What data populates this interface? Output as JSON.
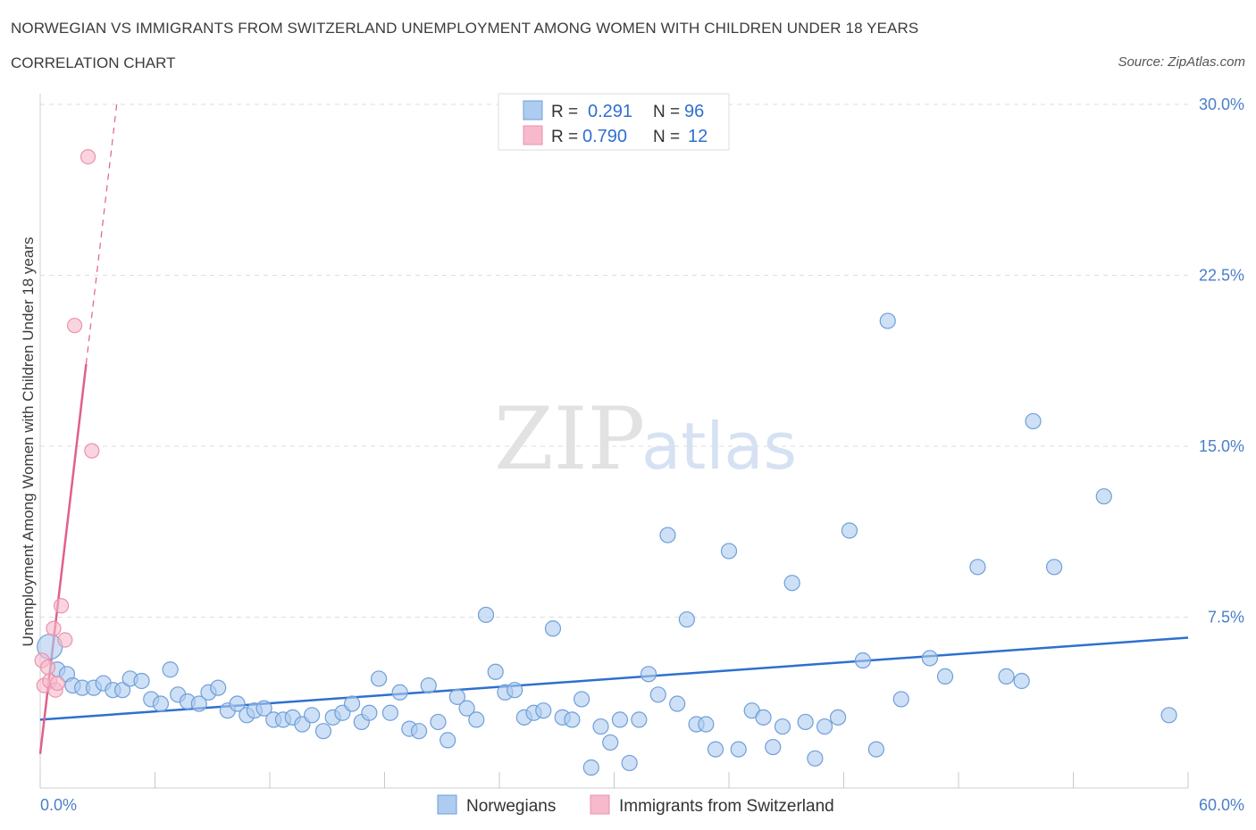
{
  "header": {
    "title": "NORWEGIAN VS IMMIGRANTS FROM SWITZERLAND UNEMPLOYMENT AMONG WOMEN WITH CHILDREN UNDER 18 YEARS",
    "subtitle": "CORRELATION CHART",
    "source": "Source: ZipAtlas.com"
  },
  "watermark": {
    "zip": "ZIP",
    "atlas": "atlas"
  },
  "legend_box": {
    "rows": [
      {
        "r_label": "R = ",
        "r_value": "0.291",
        "n_label": "N = ",
        "n_value": "96",
        "color": "#aecbf0"
      },
      {
        "r_label": "R = ",
        "r_value": "0.790",
        "n_label": "N = ",
        "n_value": "12",
        "color": "#f7b9cc"
      }
    ]
  },
  "chart_data": {
    "type": "scatter",
    "title": "NORWEGIAN VS IMMIGRANTS FROM SWITZERLAND UNEMPLOYMENT AMONG WOMEN WITH CHILDREN UNDER 18 YEARS",
    "subtitle": "CORRELATION CHART",
    "xlabel": "",
    "ylabel": "Unemployment Among Women with Children Under 18 years",
    "xlim": [
      0,
      60
    ],
    "ylim": [
      0,
      30
    ],
    "x_tick_labels": [
      "0.0%",
      "60.0%"
    ],
    "y_ticks": [
      7.5,
      15.0,
      22.5,
      30.0
    ],
    "y_tick_labels": [
      "7.5%",
      "15.0%",
      "22.5%",
      "30.0%"
    ],
    "grid": "horizontal dashed",
    "legend_placement": "bottom-center",
    "colors": {
      "norwegians": "#aecbf0",
      "norwegians_edge": "#6f9fd9",
      "norwegians_line": "#2f6fd0",
      "swiss": "#f7b9cc",
      "swiss_edge": "#e893ad",
      "swiss_line": "#e0608a"
    },
    "series": [
      {
        "name": "Norwegians",
        "r": 0.291,
        "n": 96,
        "trend": {
          "x": [
            0,
            60
          ],
          "y": [
            3.0,
            6.6
          ]
        },
        "points": [
          [
            0.5,
            6.2
          ],
          [
            0.9,
            5.2
          ],
          [
            1.4,
            5.0
          ],
          [
            1.7,
            4.5
          ],
          [
            2.2,
            4.4
          ],
          [
            2.8,
            4.4
          ],
          [
            3.3,
            4.6
          ],
          [
            3.8,
            4.3
          ],
          [
            4.3,
            4.3
          ],
          [
            4.7,
            4.8
          ],
          [
            5.3,
            4.7
          ],
          [
            5.8,
            3.9
          ],
          [
            6.3,
            3.7
          ],
          [
            6.8,
            5.2
          ],
          [
            7.2,
            4.1
          ],
          [
            7.7,
            3.8
          ],
          [
            8.3,
            3.7
          ],
          [
            8.8,
            4.2
          ],
          [
            9.3,
            4.4
          ],
          [
            9.8,
            3.4
          ],
          [
            10.3,
            3.7
          ],
          [
            10.8,
            3.2
          ],
          [
            11.2,
            3.4
          ],
          [
            11.7,
            3.5
          ],
          [
            12.2,
            3.0
          ],
          [
            12.7,
            3.0
          ],
          [
            13.2,
            3.1
          ],
          [
            13.7,
            2.8
          ],
          [
            14.2,
            3.2
          ],
          [
            14.8,
            2.5
          ],
          [
            15.3,
            3.1
          ],
          [
            15.8,
            3.3
          ],
          [
            16.3,
            3.7
          ],
          [
            16.8,
            2.9
          ],
          [
            17.2,
            3.3
          ],
          [
            17.7,
            4.8
          ],
          [
            18.3,
            3.3
          ],
          [
            18.8,
            4.2
          ],
          [
            19.3,
            2.6
          ],
          [
            19.8,
            2.5
          ],
          [
            20.3,
            4.5
          ],
          [
            20.8,
            2.9
          ],
          [
            21.3,
            2.1
          ],
          [
            21.8,
            4.0
          ],
          [
            22.3,
            3.5
          ],
          [
            22.8,
            3.0
          ],
          [
            23.3,
            7.6
          ],
          [
            23.8,
            5.1
          ],
          [
            24.3,
            4.2
          ],
          [
            24.8,
            4.3
          ],
          [
            25.3,
            3.1
          ],
          [
            25.8,
            3.3
          ],
          [
            26.3,
            3.4
          ],
          [
            26.8,
            7.0
          ],
          [
            27.3,
            3.1
          ],
          [
            27.8,
            3.0
          ],
          [
            28.3,
            3.9
          ],
          [
            28.8,
            0.9
          ],
          [
            29.3,
            2.7
          ],
          [
            29.8,
            2.0
          ],
          [
            30.3,
            3.0
          ],
          [
            30.8,
            1.1
          ],
          [
            31.3,
            3.0
          ],
          [
            31.8,
            5.0
          ],
          [
            32.3,
            4.1
          ],
          [
            32.8,
            11.1
          ],
          [
            33.3,
            3.7
          ],
          [
            33.8,
            7.4
          ],
          [
            34.3,
            2.8
          ],
          [
            34.8,
            2.8
          ],
          [
            35.3,
            1.7
          ],
          [
            36.0,
            10.4
          ],
          [
            36.5,
            1.7
          ],
          [
            37.2,
            3.4
          ],
          [
            37.8,
            3.1
          ],
          [
            38.3,
            1.8
          ],
          [
            38.8,
            2.7
          ],
          [
            39.3,
            9.0
          ],
          [
            40.0,
            2.9
          ],
          [
            40.5,
            1.3
          ],
          [
            41.0,
            2.7
          ],
          [
            41.7,
            3.1
          ],
          [
            42.3,
            11.3
          ],
          [
            43.0,
            5.6
          ],
          [
            43.7,
            1.7
          ],
          [
            44.3,
            20.5
          ],
          [
            45.0,
            3.9
          ],
          [
            46.5,
            5.7
          ],
          [
            47.3,
            4.9
          ],
          [
            49.0,
            9.7
          ],
          [
            50.5,
            4.9
          ],
          [
            51.3,
            4.7
          ],
          [
            51.9,
            16.1
          ],
          [
            53.0,
            9.7
          ],
          [
            55.6,
            12.8
          ],
          [
            59.0,
            3.2
          ]
        ]
      },
      {
        "name": "Immigrants from Switzerland",
        "r": 0.79,
        "n": 12,
        "trend": {
          "x": [
            0,
            4.0
          ],
          "y": [
            1.5,
            30.0
          ],
          "solid_until_x": 2.4
        },
        "points": [
          [
            0.1,
            5.6
          ],
          [
            0.2,
            4.5
          ],
          [
            0.4,
            5.3
          ],
          [
            0.5,
            4.7
          ],
          [
            0.7,
            7.0
          ],
          [
            0.8,
            4.3
          ],
          [
            0.9,
            4.6
          ],
          [
            1.1,
            8.0
          ],
          [
            1.3,
            6.5
          ],
          [
            1.8,
            20.3
          ],
          [
            2.5,
            27.7
          ],
          [
            2.7,
            14.8
          ]
        ]
      }
    ]
  },
  "bottom_legend": {
    "items": [
      {
        "label": "Norwegians",
        "color": "#aecbf0",
        "edge": "#6f9fd9"
      },
      {
        "label": "Immigrants from Switzerland",
        "color": "#f7b9cc",
        "edge": "#e893ad"
      }
    ]
  }
}
